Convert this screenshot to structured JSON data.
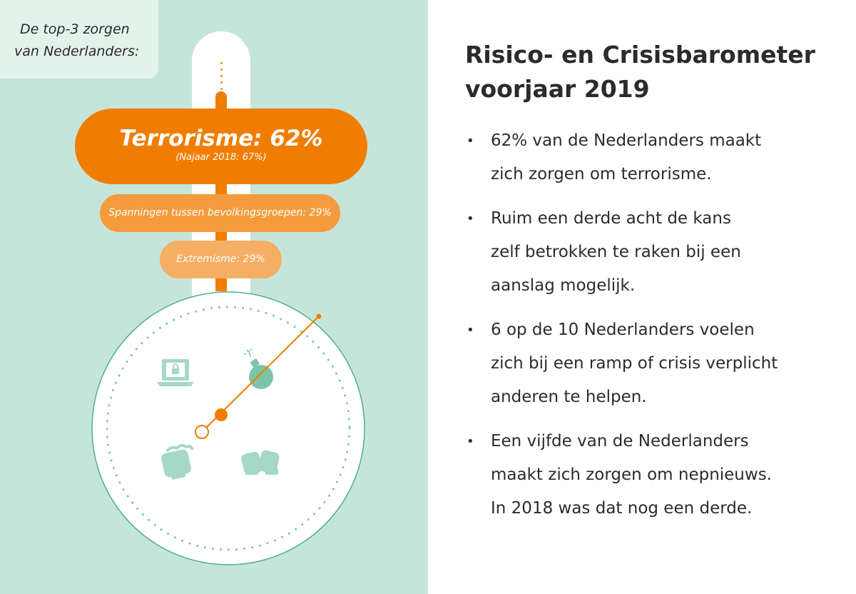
{
  "corner_label": {
    "line1": "De top-3 zorgen",
    "line2": "van Nederlanders:"
  },
  "signpost": {
    "main": {
      "title": "Terrorisme: 62%",
      "subtitle": "(Najaar 2018: 67%)"
    },
    "second": "Spanningen tussen bevolkingsgroepen: 29%",
    "third": "Extremisme: 29%"
  },
  "compass_icons": [
    "laptop-lock-icon",
    "bomb-icon",
    "fist-icon",
    "clasped-hands-icon"
  ],
  "colors": {
    "accent_orange": "#f07d00",
    "panel_green": "#c6e5da",
    "icon_green": "#9fd4c2"
  },
  "right": {
    "title": "Risico- en Crisisbarometer\nvoorjaar 2019",
    "bullets": [
      "62% van de Nederlanders maakt\nzich zorgen om terrorisme.",
      "Ruim een derde acht de kans\nzelf betrokken te raken bij een\naanslag mogelijk.",
      "6 op de 10 Nederlanders voelen\nzich bij een ramp of crisis verplicht\nanderen te helpen.",
      "Een vijfde van de Nederlanders\nmaakt zich zorgen om nepnieuws.\nIn 2018 was dat nog een derde."
    ]
  }
}
